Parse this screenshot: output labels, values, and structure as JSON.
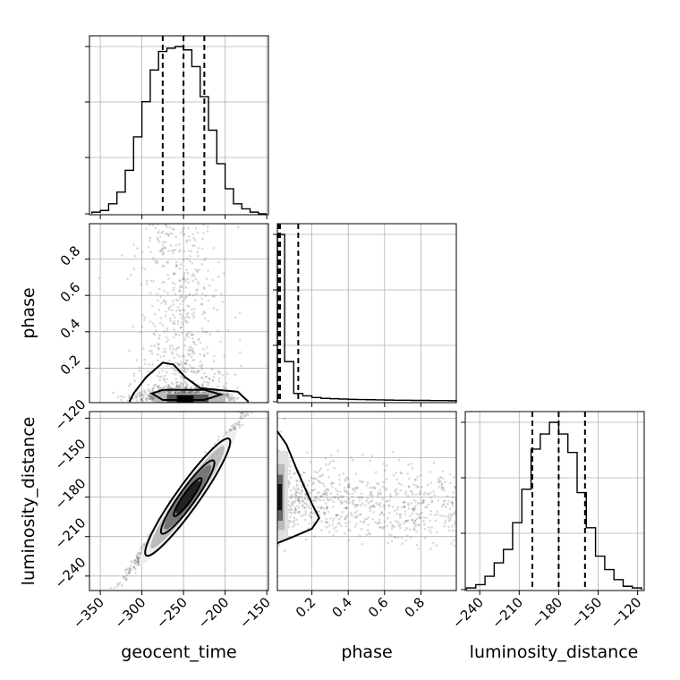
{
  "chart_data": {
    "type": "scatter",
    "title": "",
    "description_kind": "corner plot",
    "parameters": [
      "geocent_time",
      "phase",
      "luminosity_distance"
    ],
    "axis_labels": {
      "x": [
        "geocent_time",
        "phase",
        "luminosity_distance"
      ],
      "y": [
        "phase",
        "luminosity_distance"
      ]
    },
    "ranges": {
      "geocent_time": [
        -363,
        -148
      ],
      "phase": [
        0.01,
        0.995
      ],
      "luminosity_distance": [
        -251,
        -115
      ]
    },
    "ticks": {
      "geocent_time": [
        -350,
        -300,
        -250,
        -200,
        -150
      ],
      "phase": [
        0.2,
        0.4,
        0.6,
        0.8
      ],
      "luminosity_distance": [
        -240,
        -210,
        -180,
        -150,
        -120
      ]
    },
    "tick_labels": {
      "geocent_time": [
        "−350",
        "−300",
        "−250",
        "−200",
        "−150"
      ],
      "phase": [
        "0.2",
        "0.4",
        "0.6",
        "0.8"
      ],
      "luminosity_distance": [
        "−240",
        "−210",
        "−180",
        "−150",
        "−120"
      ]
    },
    "grid": true,
    "histograms": {
      "geocent_time": {
        "edges": [
          -360,
          -350,
          -340,
          -330,
          -320,
          -310,
          -300,
          -290,
          -280,
          -270,
          -260,
          -250,
          -240,
          -230,
          -220,
          -210,
          -200,
          -190,
          -180,
          -170,
          -160,
          -150
        ],
        "counts": [
          0.01,
          0.02,
          0.06,
          0.13,
          0.26,
          0.46,
          0.67,
          0.86,
          0.97,
          0.99,
          1.0,
          0.98,
          0.88,
          0.7,
          0.5,
          0.3,
          0.15,
          0.06,
          0.03,
          0.01,
          0.0
        ],
        "quantiles": [
          -275,
          -250,
          -225
        ]
      },
      "phase": {
        "edges": [
          0.0,
          0.05,
          0.1,
          0.15,
          0.2,
          0.25,
          0.3,
          0.35,
          0.4,
          0.45,
          0.5,
          0.55,
          0.6,
          0.65,
          0.7,
          0.75,
          0.8,
          0.85,
          0.9,
          0.95,
          1.0
        ],
        "counts": [
          1.0,
          0.24,
          0.05,
          0.035,
          0.025,
          0.02,
          0.018,
          0.016,
          0.014,
          0.013,
          0.012,
          0.011,
          0.01,
          0.009,
          0.009,
          0.008,
          0.008,
          0.007,
          0.007,
          0.006
        ],
        "quantiles": [
          0.015,
          0.025,
          0.125
        ]
      },
      "luminosity_distance": {
        "edges": [
          -250,
          -243,
          -236,
          -229,
          -222,
          -215,
          -208,
          -201,
          -194,
          -187,
          -180,
          -173,
          -166,
          -159,
          -152,
          -145,
          -138,
          -131,
          -124,
          -117
        ],
        "counts": [
          0.01,
          0.03,
          0.08,
          0.16,
          0.24,
          0.4,
          0.6,
          0.84,
          0.93,
          1.0,
          0.93,
          0.82,
          0.58,
          0.37,
          0.2,
          0.12,
          0.06,
          0.02,
          0.01
        ],
        "quantiles": [
          -200,
          -180,
          -160
        ]
      }
    }
  }
}
